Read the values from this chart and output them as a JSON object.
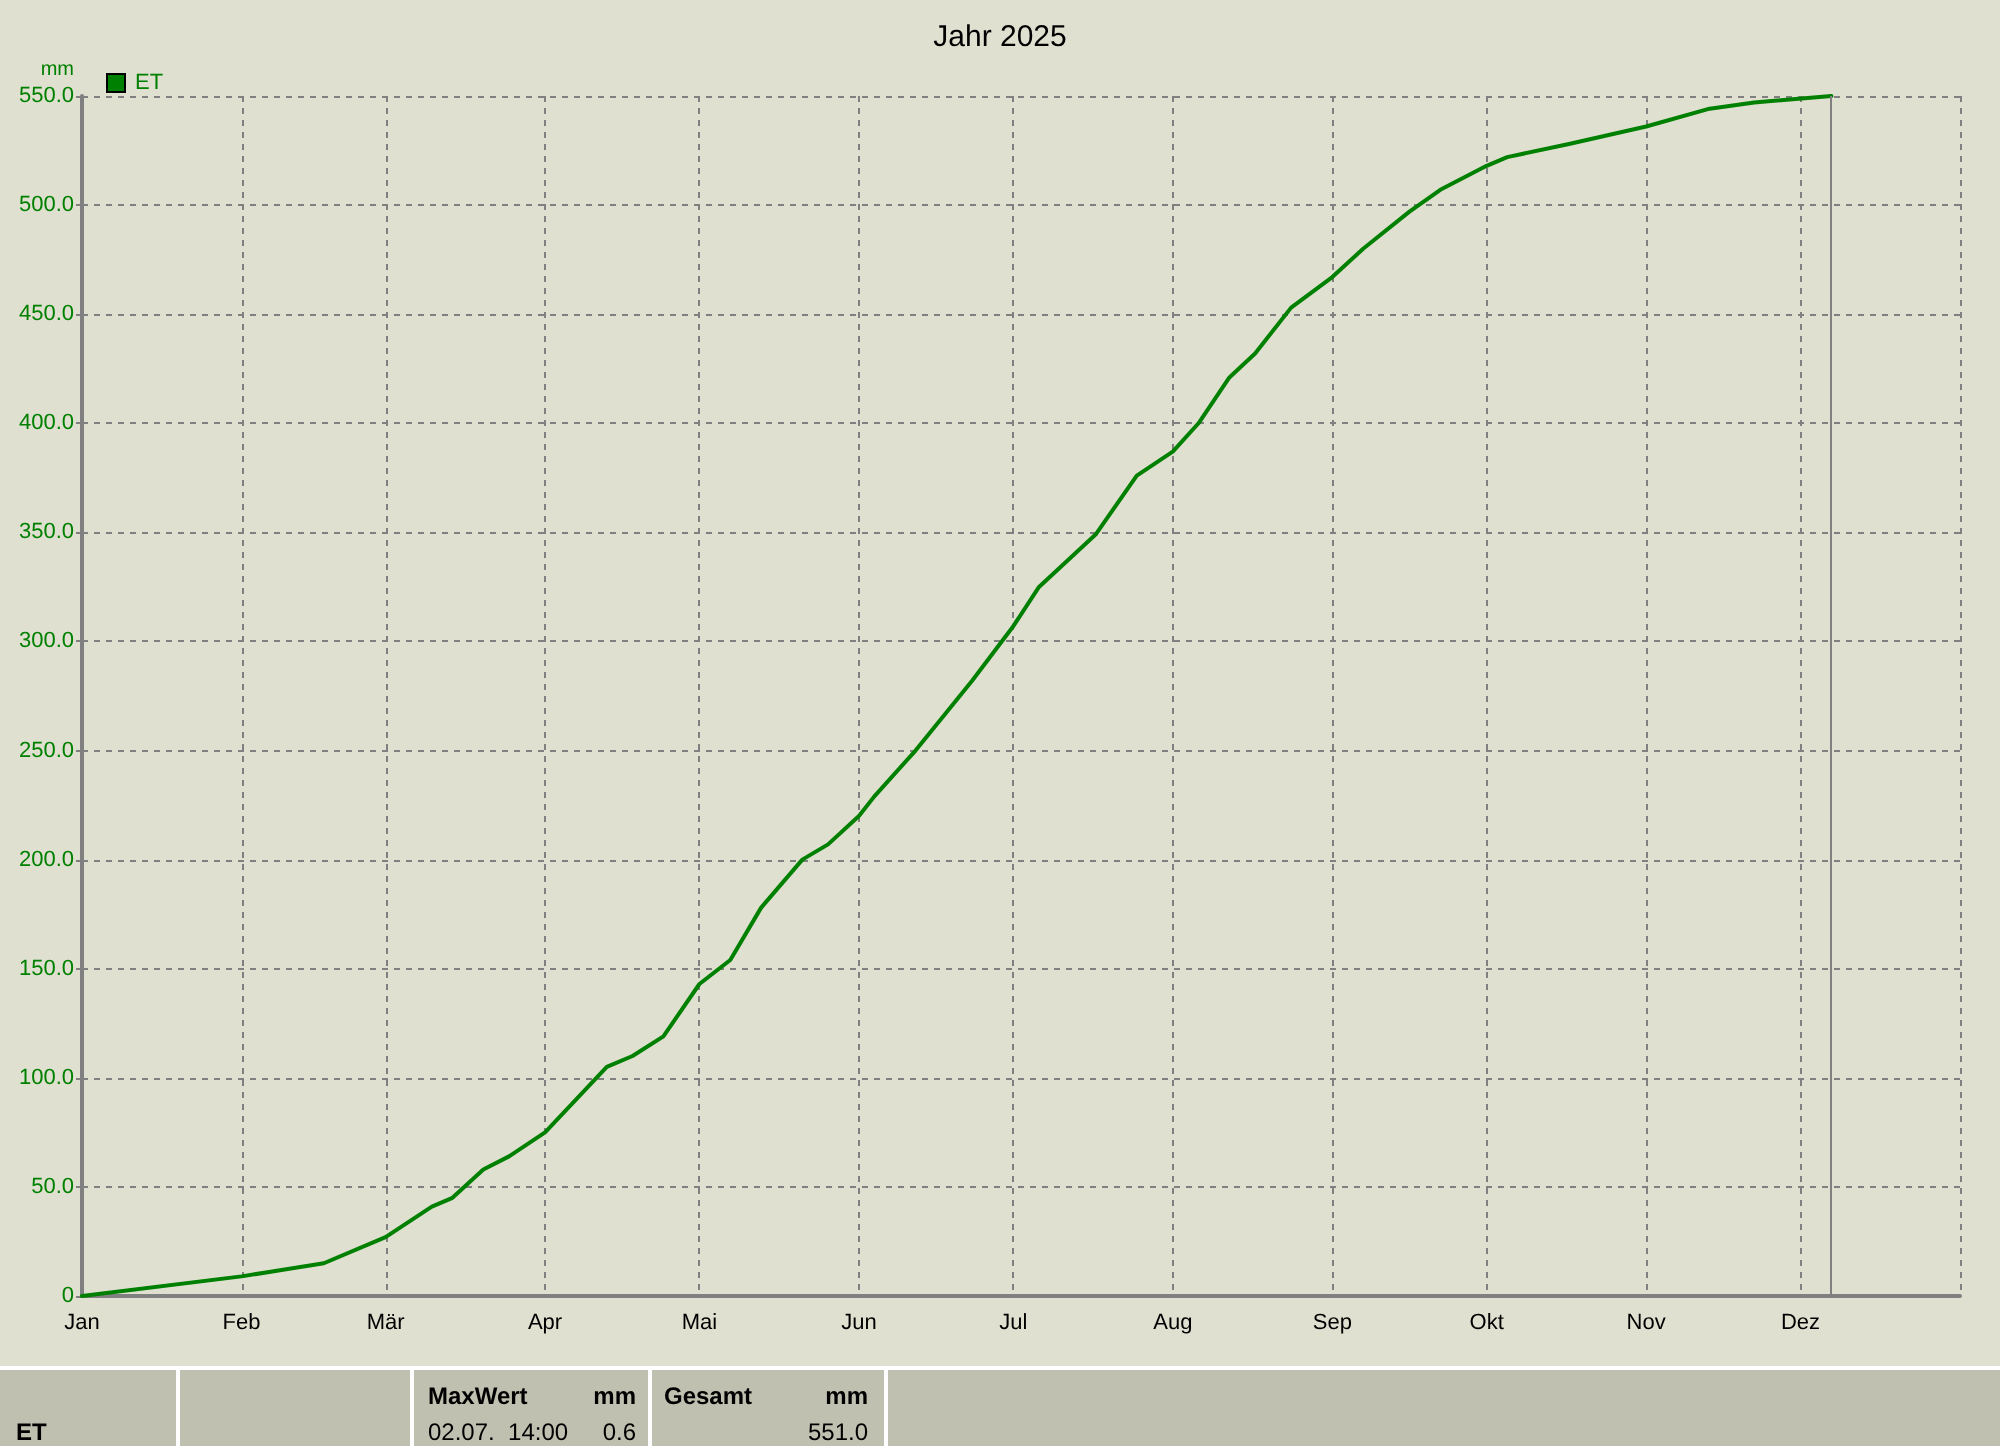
{
  "chart_data": {
    "type": "line",
    "title": "Jahr 2025",
    "ylabel": "mm",
    "x": [
      "2025-01-01",
      "2025-02-01",
      "2025-02-17",
      "2025-03-01",
      "2025-03-10",
      "2025-03-14",
      "2025-03-20",
      "2025-03-25",
      "2025-04-01",
      "2025-04-07",
      "2025-04-13",
      "2025-04-18",
      "2025-04-24",
      "2025-05-01",
      "2025-05-07",
      "2025-05-13",
      "2025-05-21",
      "2025-05-26",
      "2025-06-01",
      "2025-06-04",
      "2025-06-12",
      "2025-06-23",
      "2025-07-01",
      "2025-07-06",
      "2025-07-17",
      "2025-07-25",
      "2025-08-01",
      "2025-08-06",
      "2025-08-12",
      "2025-08-17",
      "2025-08-24",
      "2025-09-01",
      "2025-09-07",
      "2025-09-16",
      "2025-09-22",
      "2025-10-01",
      "2025-10-05",
      "2025-10-17",
      "2025-11-01",
      "2025-11-13",
      "2025-11-22",
      "2025-12-07"
    ],
    "series": [
      {
        "name": "ET",
        "color": "#008000",
        "values": [
          0,
          9,
          15,
          27,
          41,
          45,
          58,
          64,
          75,
          90,
          105,
          110,
          119,
          143,
          154,
          178,
          200,
          207,
          220,
          229,
          250,
          282,
          307,
          325,
          349,
          376,
          387,
          400,
          421,
          432,
          453,
          467,
          480,
          497,
          507,
          518,
          522,
          528,
          536,
          544,
          547,
          550
        ]
      }
    ],
    "xlim": [
      "2025-01-01",
      "2026-01-01"
    ],
    "xticks": [
      {
        "value": "2025-01-01",
        "label": "Jan"
      },
      {
        "value": "2025-02-01",
        "label": "Feb"
      },
      {
        "value": "2025-03-01",
        "label": "Mär"
      },
      {
        "value": "2025-04-01",
        "label": "Apr"
      },
      {
        "value": "2025-05-01",
        "label": "Mai"
      },
      {
        "value": "2025-06-01",
        "label": "Jun"
      },
      {
        "value": "2025-07-01",
        "label": "Jul"
      },
      {
        "value": "2025-08-01",
        "label": "Aug"
      },
      {
        "value": "2025-09-01",
        "label": "Sep"
      },
      {
        "value": "2025-10-01",
        "label": "Okt"
      },
      {
        "value": "2025-11-01",
        "label": "Nov"
      },
      {
        "value": "2025-12-01",
        "label": "Dez"
      },
      {
        "value": "2026-01-01",
        "label": null
      }
    ],
    "ylim": [
      0,
      550
    ],
    "yticks": [
      0,
      {
        "value": 50,
        "label": "50.0"
      },
      {
        "value": 100,
        "label": "100.0"
      },
      {
        "value": 150,
        "label": "150.0"
      },
      {
        "value": 200,
        "label": "200.0"
      },
      {
        "value": 250,
        "label": "250.0"
      },
      {
        "value": 300,
        "label": "300.0"
      },
      {
        "value": 350,
        "label": "350.0"
      },
      {
        "value": 400,
        "label": "400.0"
      },
      {
        "value": 450,
        "label": "450.0"
      },
      {
        "value": 500,
        "label": "500.0"
      },
      {
        "value": 550,
        "label": "550.0"
      }
    ],
    "ref_lines": [
      {
        "axis": "x",
        "value": "2025-12-07",
        "color": "#808080",
        "line_style": "solid"
      }
    ],
    "grid": true,
    "legend": "top left",
    "marker": "none",
    "line_style": "solid",
    "annotations": [
      "ET",
      "MaxWert",
      "mm",
      "02.07.  14:00",
      "0.6",
      "Gesamt",
      "mm",
      "551.0"
    ]
  }
}
